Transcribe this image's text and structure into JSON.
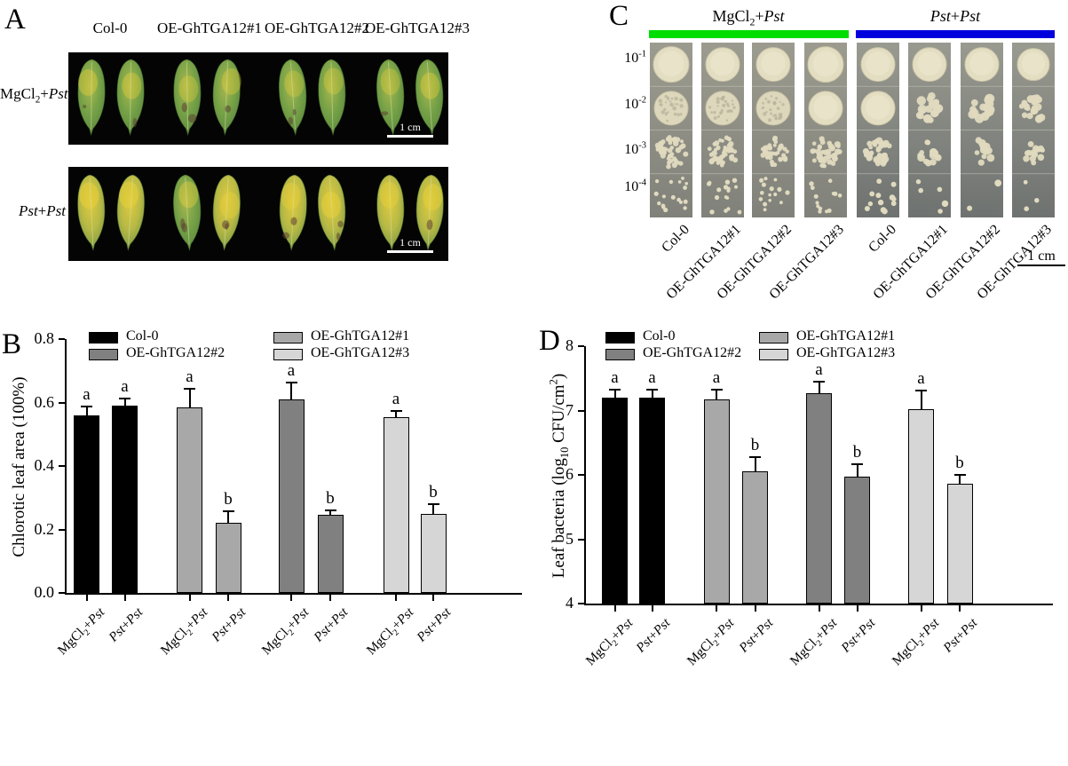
{
  "panel_a": {
    "tag": "A",
    "col_headers": [
      "Col-0",
      "OE-GhTGA12#1",
      "OE-GhTGA12#2",
      "OE-GhTGA12#3"
    ],
    "row_labels_html": [
      "MgCl<sub>2</sub>+<i>Pst</i>",
      "<i>Pst</i>+<i>Pst</i>"
    ],
    "row_labels": [
      "MgCl2+Pst",
      "Pst+Pst"
    ],
    "scale_label": "1 cm",
    "rows": [
      {
        "treatment": "MgCl2+Pst",
        "chlorosis_levels": [
          0.5,
          0.45,
          0.35,
          0.4,
          0.3,
          0.35,
          0.35,
          0.45
        ]
      },
      {
        "treatment": "Pst+Pst",
        "chlorosis_levels": [
          0.85,
          0.8,
          0.5,
          0.55,
          0.55,
          0.75,
          0.6,
          0.7
        ]
      }
    ]
  },
  "panel_c": {
    "tag": "C",
    "group_headers_html": [
      "MgCl<sub>2</sub>+<i>Pst</i>",
      "<i>Pst</i>+<i>Pst</i>"
    ],
    "group_headers": [
      "MgCl2+Pst",
      "Pst+Pst"
    ],
    "group_bar_colors": [
      "#00dd00",
      "#0000dd"
    ],
    "dilutions_html": [
      "10<sup>-1</sup>",
      "10<sup>-2</sup>",
      "10<sup>-3</sup>",
      "10<sup>-4</sup>"
    ],
    "dilutions": [
      "10^-1",
      "10^-2",
      "10^-3",
      "10^-4"
    ],
    "strip_labels": [
      "Col-0",
      "OE-GhTGA12#1",
      "OE-GhTGA12#2",
      "OE-GhTGA12#3",
      "Col-0",
      "OE-GhTGA12#1",
      "OE-GhTGA12#2",
      "OE-GhTGA12#3"
    ],
    "scale_label": "1 cm",
    "strips": [
      {
        "group": "MgCl2+Pst",
        "line": "Col-0",
        "cells": [
          {
            "t": "lawn",
            "r": 20
          },
          {
            "t": "dense"
          },
          {
            "t": "cluster",
            "n": 46,
            "r": 2.6,
            "spread": 17
          },
          {
            "t": "scatter",
            "n": 18,
            "r": 2.2
          }
        ]
      },
      {
        "group": "MgCl2+Pst",
        "line": "OE-GhTGA12#1",
        "cells": [
          {
            "t": "lawn",
            "r": 19
          },
          {
            "t": "dense"
          },
          {
            "t": "cluster",
            "n": 42,
            "r": 2.7,
            "spread": 17
          },
          {
            "t": "scatter",
            "n": 16,
            "r": 2.3
          }
        ]
      },
      {
        "group": "MgCl2+Pst",
        "line": "OE-GhTGA12#2",
        "cells": [
          {
            "t": "lawn",
            "r": 19
          },
          {
            "t": "dense"
          },
          {
            "t": "cluster",
            "n": 40,
            "r": 2.6,
            "spread": 16
          },
          {
            "t": "scatter",
            "n": 15,
            "r": 2.2
          }
        ]
      },
      {
        "group": "MgCl2+Pst",
        "line": "OE-GhTGA12#3",
        "cells": [
          {
            "t": "lawn",
            "r": 20
          },
          {
            "t": "lawn",
            "r": 19
          },
          {
            "t": "cluster",
            "n": 36,
            "r": 2.8,
            "spread": 16
          },
          {
            "t": "scatter",
            "n": 13,
            "r": 2.3
          }
        ]
      },
      {
        "group": "Pst+Pst",
        "line": "Col-0",
        "cells": [
          {
            "t": "lawn",
            "r": 19
          },
          {
            "t": "lawn",
            "r": 19
          },
          {
            "t": "cluster",
            "n": 34,
            "r": 3.2,
            "spread": 15
          },
          {
            "t": "scatter",
            "n": 12,
            "r": 3
          }
        ]
      },
      {
        "group": "Pst+Pst",
        "line": "OE-GhTGA12#1",
        "cells": [
          {
            "t": "lawn",
            "r": 19
          },
          {
            "t": "cluster",
            "n": 20,
            "r": 4.2,
            "spread": 14
          },
          {
            "t": "cluster",
            "n": 14,
            "r": 3.8,
            "spread": 14
          },
          {
            "t": "scatter",
            "n": 5,
            "r": 3.2
          }
        ]
      },
      {
        "group": "Pst+Pst",
        "line": "OE-GhTGA12#2",
        "cells": [
          {
            "t": "lawn",
            "r": 19
          },
          {
            "t": "cluster",
            "n": 17,
            "r": 4.5,
            "spread": 14
          },
          {
            "t": "cluster",
            "n": 12,
            "r": 3.6,
            "spread": 14
          },
          {
            "t": "scatter",
            "n": 2,
            "r": 3.6
          }
        ]
      },
      {
        "group": "Pst+Pst",
        "line": "OE-GhTGA12#3",
        "cells": [
          {
            "t": "lawn",
            "r": 18
          },
          {
            "t": "cluster",
            "n": 24,
            "r": 3.6,
            "spread": 14
          },
          {
            "t": "cluster",
            "n": 13,
            "r": 3.2,
            "spread": 14
          },
          {
            "t": "scatter",
            "n": 3,
            "r": 3
          }
        ]
      }
    ]
  },
  "chart_data": [
    {
      "id": "B",
      "tag": "B",
      "type": "bar",
      "ylabel": "Chlorotic leaf area (100%)",
      "ylabel_html": "Chlorotic leaf area (100%)",
      "ylim": [
        0.0,
        0.8
      ],
      "yticks": [
        "0.0",
        "0.2",
        "0.4",
        "0.6",
        "0.8"
      ],
      "conditions": [
        "MgCl2+Pst",
        "Pst+Pst"
      ],
      "conditions_html": [
        "MgCl<sub>2</sub>+<i>Pst</i>",
        "<i>Pst</i>+<i>Pst</i>"
      ],
      "legend_order_note": "row1: Col-0 | OE-GhTGA12#1, row2: OE-GhTGA12#2 | OE-GhTGA12#3",
      "series": [
        {
          "name": "Col-0",
          "color": "#000000",
          "values": [
            0.56,
            0.59
          ],
          "errors": [
            0.025,
            0.02
          ],
          "letters": [
            "a",
            "a"
          ]
        },
        {
          "name": "OE-GhTGA12#1",
          "color": "#a8a8a8",
          "values": [
            0.585,
            0.22
          ],
          "errors": [
            0.055,
            0.035
          ],
          "letters": [
            "a",
            "b"
          ]
        },
        {
          "name": "OE-GhTGA12#2",
          "color": "#808080",
          "values": [
            0.61,
            0.245
          ],
          "errors": [
            0.05,
            0.012
          ],
          "letters": [
            "a",
            "b"
          ]
        },
        {
          "name": "OE-GhTGA12#3",
          "color": "#d6d6d6",
          "values": [
            0.555,
            0.25
          ],
          "errors": [
            0.015,
            0.028
          ],
          "letters": [
            "a",
            "b"
          ]
        }
      ]
    },
    {
      "id": "D",
      "tag": "D",
      "type": "bar",
      "ylabel": "Leaf bacteria (log10 CFU/cm2)",
      "ylabel_html": "Leaf bacteria (log<sub>10</sub> CFU/cm<sup>2</sup>)",
      "ylim": [
        4,
        8
      ],
      "yticks": [
        "4",
        "5",
        "6",
        "7",
        "8"
      ],
      "conditions": [
        "MgCl2+Pst",
        "Pst+Pst"
      ],
      "conditions_html": [
        "MgCl<sub>2</sub>+<i>Pst</i>",
        "<i>Pst</i>+<i>Pst</i>"
      ],
      "series": [
        {
          "name": "Col-0",
          "color": "#000000",
          "values": [
            7.2,
            7.2
          ],
          "errors": [
            0.11,
            0.11
          ],
          "letters": [
            "a",
            "a"
          ]
        },
        {
          "name": "OE-GhTGA12#1",
          "color": "#a8a8a8",
          "values": [
            7.17,
            6.06
          ],
          "errors": [
            0.14,
            0.2
          ],
          "letters": [
            "a",
            "b"
          ]
        },
        {
          "name": "OE-GhTGA12#2",
          "color": "#808080",
          "values": [
            7.27,
            5.97
          ],
          "errors": [
            0.16,
            0.18
          ],
          "letters": [
            "a",
            "b"
          ]
        },
        {
          "name": "OE-GhTGA12#3",
          "color": "#d6d6d6",
          "values": [
            7.02,
            5.86
          ],
          "errors": [
            0.28,
            0.12
          ],
          "letters": [
            "a",
            "b"
          ]
        }
      ]
    }
  ]
}
